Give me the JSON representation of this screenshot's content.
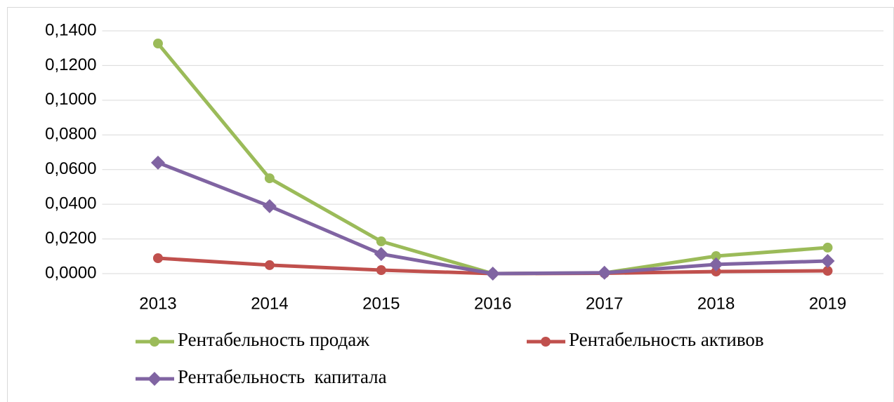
{
  "chart_data": {
    "type": "line",
    "categories": [
      "2013",
      "2014",
      "2015",
      "2016",
      "2017",
      "2018",
      "2019"
    ],
    "series": [
      {
        "name": "Рентабельность продаж",
        "color": "#9bbb59",
        "marker": "circle",
        "values": [
          0.1327,
          0.055,
          0.0186,
          0,
          0.0004,
          0.0101,
          0.015
        ]
      },
      {
        "name": "Рентабельность активов",
        "color": "#c0504d",
        "marker": "circle",
        "values": [
          0.0089,
          0.0049,
          0.002,
          0,
          0.0002,
          0.0012,
          0.0016
        ]
      },
      {
        "name": "Рентабельность  капитала",
        "color": "#8064a2",
        "marker": "diamond",
        "values": [
          0.064,
          0.0389,
          0.0113,
          0,
          0.0005,
          0.0053,
          0.0073
        ]
      }
    ],
    "ylim": [
      0,
      0.14
    ],
    "yticks": [
      {
        "value": 0,
        "label": "0,0000"
      },
      {
        "value": 0.02,
        "label": "0,0200"
      },
      {
        "value": 0.04,
        "label": "0,0400"
      },
      {
        "value": 0.06,
        "label": "0,0600"
      },
      {
        "value": 0.08,
        "label": "0,0800"
      },
      {
        "value": 0.1,
        "label": "0,1000"
      },
      {
        "value": 0.12,
        "label": "0,1200"
      },
      {
        "value": 0.14,
        "label": "0,1400"
      }
    ],
    "grid": true,
    "legend": "bottom"
  }
}
